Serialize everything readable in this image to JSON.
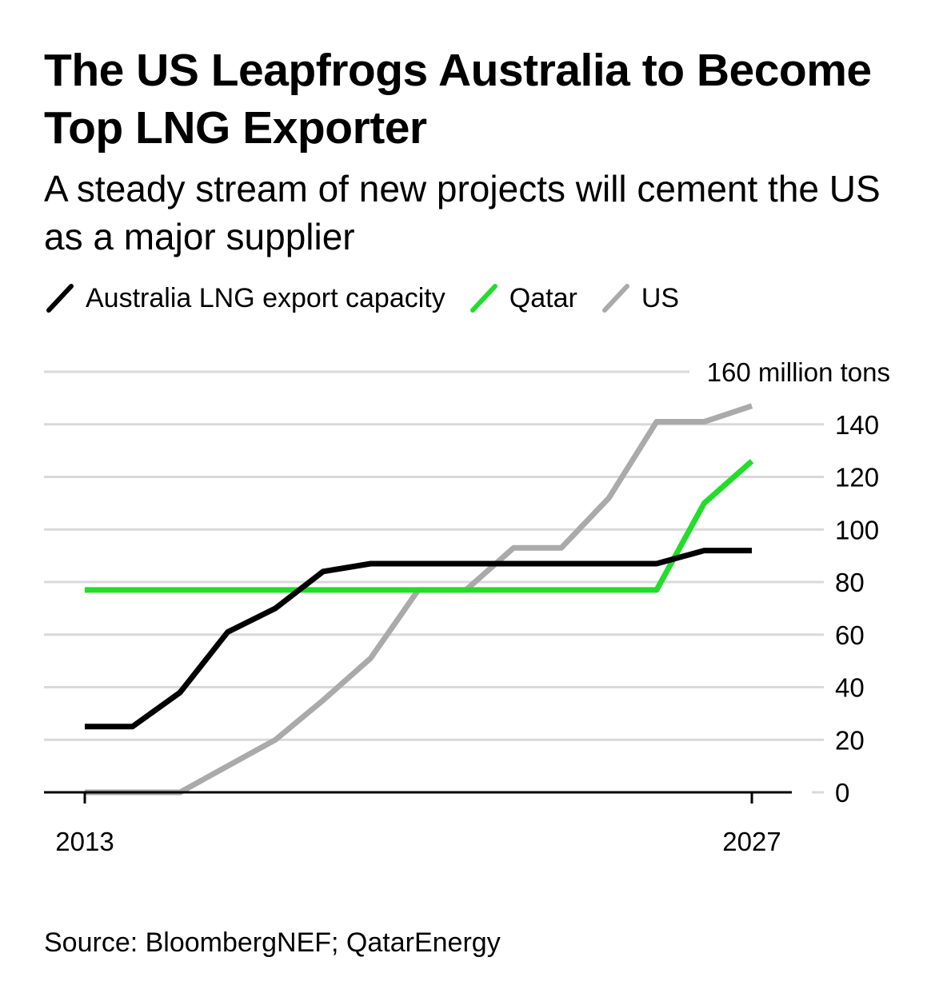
{
  "colors": {
    "australia": "#000000",
    "qatar": "#22dd2a",
    "us": "#aaaaaa",
    "grid": "#d9d9d9",
    "axis": "#000000",
    "text": "#000000"
  },
  "header": {
    "title": "The US Leapfrogs Australia to Become Top LNG Exporter",
    "subtitle": "A steady stream of new projects will cement the US as a major supplier"
  },
  "legend": {
    "items": [
      {
        "label": "Australia LNG export capacity",
        "color_key": "australia"
      },
      {
        "label": "Qatar",
        "color_key": "qatar"
      },
      {
        "label": "US",
        "color_key": "us"
      }
    ]
  },
  "footer": {
    "source": "Source: BloombergNEF; QatarEnergy"
  },
  "chart_data": {
    "type": "line",
    "title": "The US Leapfrogs Australia to Become Top LNG Exporter",
    "subtitle": "A steady stream of new projects will cement the US as a major supplier",
    "xlabel": "",
    "ylabel": "",
    "unit_label": "160 million tons",
    "x": [
      2013,
      2014,
      2015,
      2016,
      2017,
      2018,
      2019,
      2020,
      2021,
      2022,
      2023,
      2024,
      2025,
      2026,
      2027
    ],
    "x_tick_labels": [
      "2013",
      "2027"
    ],
    "xlim": [
      2013,
      2027
    ],
    "ylim": [
      0,
      160
    ],
    "y_ticks": [
      0,
      20,
      40,
      60,
      80,
      100,
      120,
      140,
      160
    ],
    "y_tick_labels": [
      "0",
      "20",
      "40",
      "60",
      "80",
      "100",
      "120",
      "140",
      "160 million tons"
    ],
    "grid": true,
    "legend_position": "top-left",
    "series": [
      {
        "name": "Australia LNG export capacity",
        "color_key": "australia",
        "values": [
          25,
          25,
          38,
          61,
          70,
          84,
          87,
          87,
          87,
          87,
          87,
          87,
          87,
          92,
          92
        ]
      },
      {
        "name": "Qatar",
        "color_key": "qatar",
        "values": [
          77,
          77,
          77,
          77,
          77,
          77,
          77,
          77,
          77,
          77,
          77,
          77,
          77,
          110,
          126
        ]
      },
      {
        "name": "US",
        "color_key": "us",
        "values": [
          0,
          0,
          0,
          10,
          20,
          35,
          51,
          77,
          77,
          93,
          93,
          112,
          141,
          141,
          147
        ]
      }
    ]
  }
}
